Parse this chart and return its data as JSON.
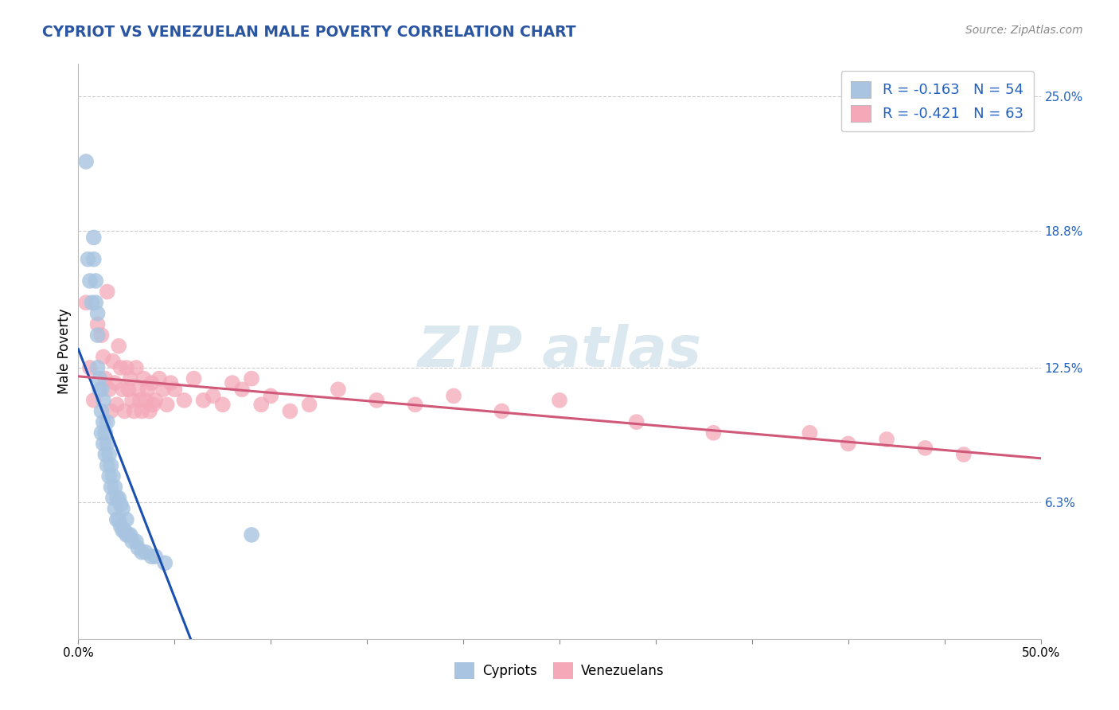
{
  "title": "CYPRIOT VS VENEZUELAN MALE POVERTY CORRELATION CHART",
  "source": "Source: ZipAtlas.com",
  "ylabel": "Male Poverty",
  "xlim": [
    0.0,
    0.5
  ],
  "ylim": [
    0.0,
    0.265
  ],
  "xtick_positions": [
    0.0,
    0.05,
    0.1,
    0.15,
    0.2,
    0.25,
    0.3,
    0.35,
    0.4,
    0.45,
    0.5
  ],
  "xticklabels_visible": {
    "0.0": "0.0%",
    "0.50": "50.0%"
  },
  "ytick_positions": [
    0.063,
    0.125,
    0.188,
    0.25
  ],
  "ytick_labels": [
    "6.3%",
    "12.5%",
    "18.8%",
    "25.0%"
  ],
  "cypriot_color": "#a8c4e0",
  "venezuelan_color": "#f4a8b8",
  "cypriot_R": -0.163,
  "cypriot_N": 54,
  "venezuelan_R": -0.421,
  "venezuelan_N": 63,
  "cypriot_line_color": "#1a50b0",
  "venezuelan_line_color": "#d05878",
  "background_color": "#ffffff",
  "grid_color": "#cccccc",
  "title_color": "#2a55a0",
  "cypriot_x": [
    0.004,
    0.005,
    0.006,
    0.007,
    0.008,
    0.008,
    0.009,
    0.009,
    0.01,
    0.01,
    0.01,
    0.011,
    0.011,
    0.012,
    0.012,
    0.012,
    0.013,
    0.013,
    0.013,
    0.014,
    0.014,
    0.015,
    0.015,
    0.015,
    0.016,
    0.016,
    0.017,
    0.017,
    0.018,
    0.018,
    0.019,
    0.019,
    0.02,
    0.02,
    0.021,
    0.021,
    0.022,
    0.022,
    0.023,
    0.023,
    0.024,
    0.025,
    0.025,
    0.026,
    0.027,
    0.028,
    0.03,
    0.031,
    0.033,
    0.035,
    0.038,
    0.04,
    0.045,
    0.09
  ],
  "cypriot_y": [
    0.22,
    0.175,
    0.165,
    0.155,
    0.185,
    0.175,
    0.165,
    0.155,
    0.125,
    0.14,
    0.15,
    0.115,
    0.12,
    0.095,
    0.105,
    0.115,
    0.09,
    0.1,
    0.11,
    0.085,
    0.095,
    0.08,
    0.09,
    0.1,
    0.075,
    0.085,
    0.07,
    0.08,
    0.065,
    0.075,
    0.06,
    0.07,
    0.055,
    0.065,
    0.055,
    0.065,
    0.052,
    0.062,
    0.05,
    0.06,
    0.05,
    0.048,
    0.055,
    0.048,
    0.048,
    0.045,
    0.045,
    0.042,
    0.04,
    0.04,
    0.038,
    0.038,
    0.035,
    0.048
  ],
  "venezuelan_x": [
    0.004,
    0.006,
    0.008,
    0.01,
    0.012,
    0.013,
    0.014,
    0.015,
    0.016,
    0.017,
    0.018,
    0.019,
    0.02,
    0.021,
    0.022,
    0.023,
    0.024,
    0.025,
    0.026,
    0.027,
    0.028,
    0.029,
    0.03,
    0.031,
    0.032,
    0.033,
    0.034,
    0.035,
    0.036,
    0.037,
    0.038,
    0.039,
    0.04,
    0.042,
    0.044,
    0.046,
    0.048,
    0.05,
    0.055,
    0.06,
    0.065,
    0.07,
    0.075,
    0.08,
    0.085,
    0.09,
    0.095,
    0.1,
    0.11,
    0.12,
    0.135,
    0.155,
    0.175,
    0.195,
    0.22,
    0.25,
    0.29,
    0.33,
    0.38,
    0.4,
    0.42,
    0.44,
    0.46
  ],
  "venezuelan_y": [
    0.155,
    0.125,
    0.11,
    0.145,
    0.14,
    0.13,
    0.12,
    0.16,
    0.115,
    0.105,
    0.128,
    0.118,
    0.108,
    0.135,
    0.125,
    0.115,
    0.105,
    0.125,
    0.115,
    0.12,
    0.11,
    0.105,
    0.125,
    0.115,
    0.11,
    0.105,
    0.12,
    0.11,
    0.115,
    0.105,
    0.118,
    0.108,
    0.11,
    0.12,
    0.115,
    0.108,
    0.118,
    0.115,
    0.11,
    0.12,
    0.11,
    0.112,
    0.108,
    0.118,
    0.115,
    0.12,
    0.108,
    0.112,
    0.105,
    0.108,
    0.115,
    0.11,
    0.108,
    0.112,
    0.105,
    0.11,
    0.1,
    0.095,
    0.095,
    0.09,
    0.092,
    0.088,
    0.085
  ]
}
